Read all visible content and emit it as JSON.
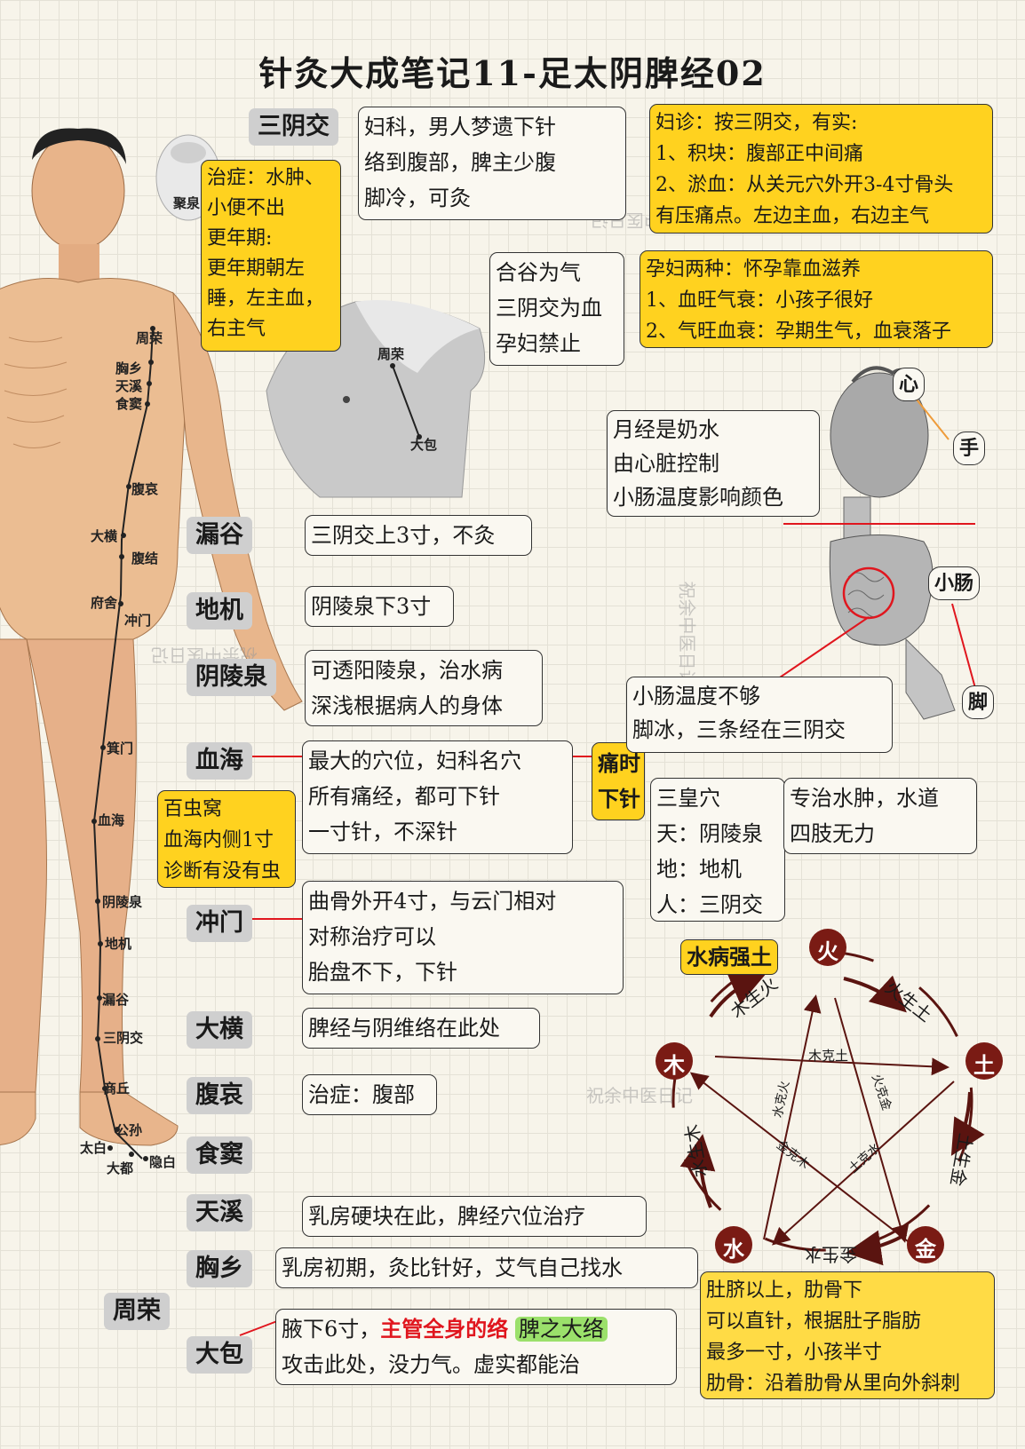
{
  "title": "针灸大成笔记11-足太阴脾经02",
  "watermark": "祝余中医日记",
  "acupoints": {
    "sanyinjiao": "三阴交",
    "lougu": "漏谷",
    "diji": "地机",
    "yinlingquan": "阴陵泉",
    "xuehai": "血海",
    "chongmen": "冲门",
    "daheng": "大横",
    "fuai": "腹哀",
    "shidou": "食窦",
    "tianxi": "天溪",
    "xiongxiang": "胸乡",
    "zhourong": "周荣",
    "dabao": "大包"
  },
  "body_labels": [
    "周荣",
    "胸乡",
    "天溪",
    "食窦",
    "腹哀",
    "大横",
    "腹结",
    "府舍",
    "冲门",
    "箕门",
    "血海",
    "阴陵泉",
    "地机",
    "漏谷",
    "三阴交",
    "商丘",
    "公孙",
    "太白",
    "大都",
    "隐白"
  ],
  "inset_labels": {
    "zhourong": "周荣",
    "dabao": "大包"
  },
  "face_label": "聚泉",
  "notes": {
    "zhizheng": [
      "治症：水肿、",
      "小便不出",
      "更年期:",
      "更年期朝左",
      "睡，左主血，",
      "右主气"
    ],
    "sanyinjiao_desc": [
      "妇科，男人梦遗下针",
      "络到腹部，脾主少腹",
      "脚冷，可灸"
    ],
    "fuzhen": [
      "妇诊：按三阴交，有实:",
      "1、积块：腹部正中间痛",
      "2、淤血：从关元穴外开3-4寸骨头",
      "有压痛点。左边主血，右边主气"
    ],
    "hegu": [
      "合谷为气",
      "三阴交为血",
      "孕妇禁止"
    ],
    "yunfu": [
      "孕妇两种：怀孕靠血滋养",
      "1、血旺气衰：小孩子很好",
      "2、气旺血衰：孕期生气，血衰落子"
    ],
    "yuejing": [
      "月经是奶水",
      "由心脏控制",
      "小肠温度影响颜色"
    ],
    "xiaochang_temp": [
      "小肠温度不够",
      "脚冰，三条经在三阴交"
    ],
    "lougu_desc": "三阴交上3寸，不灸",
    "diji_desc": "阴陵泉下3寸",
    "yinlingquan_desc": [
      "可透阳陵泉，治水病",
      "深浅根据病人的身体"
    ],
    "xuehai_desc": [
      "最大的穴位，妇科名穴",
      "所有痛经，都可下针",
      "一寸针，不深针"
    ],
    "tongshi": [
      "痛时",
      "下针"
    ],
    "baichongwo": [
      "百虫窝",
      "血海内侧1寸",
      "诊断有没有虫"
    ],
    "sanhuang": [
      "三皇穴",
      "天：阴陵泉",
      "地：地机",
      "人：三阴交"
    ],
    "sanhuang_desc": [
      "专治水肿，水道",
      "四肢无力"
    ],
    "chongmen_desc": [
      "曲骨外开4寸，与云门相对",
      "对称治疗可以",
      "胎盘不下，下针"
    ],
    "daheng_desc": "脾经与阴维络在此处",
    "fuai_desc": "治症：腹部",
    "tianxi_desc": "乳房硬块在此，脾经穴位治疗",
    "xiongxiang_desc": "乳房初期，灸比针好，艾气自己找水",
    "dabao_desc_a": "腋下6寸，",
    "dabao_desc_red": "主管全身的络",
    "dabao_desc_green": "脾之大络",
    "dabao_desc_b": "攻击此处，没力气。虚实都能治",
    "needle": [
      "肚脐以上，肋骨下",
      "可以直针，根据肚子脂肪",
      "最多一寸，小孩半寸",
      "肋骨：沿着肋骨从里向外斜刺"
    ]
  },
  "organ_labels": {
    "heart": "心",
    "hand": "手",
    "small_intestine": "小肠",
    "foot": "脚"
  },
  "five_elements": {
    "label": "水病强土",
    "elements": {
      "fire": "火",
      "earth": "土",
      "metal": "金",
      "water": "水",
      "wood": "木"
    },
    "generating": {
      "wood_fire": "木生火",
      "fire_earth": "火生土",
      "earth_metal": "土生金",
      "metal_water": "金生水",
      "water_wood": "水生木"
    },
    "controlling": {
      "wood_earth": "木克土",
      "water_fire": "水克火",
      "fire_metal": "火克金",
      "metal_wood": "金克木",
      "earth_water": "土克水"
    },
    "colors": {
      "element_fill": "#7a1b14",
      "arrow": "#5a1410"
    }
  }
}
